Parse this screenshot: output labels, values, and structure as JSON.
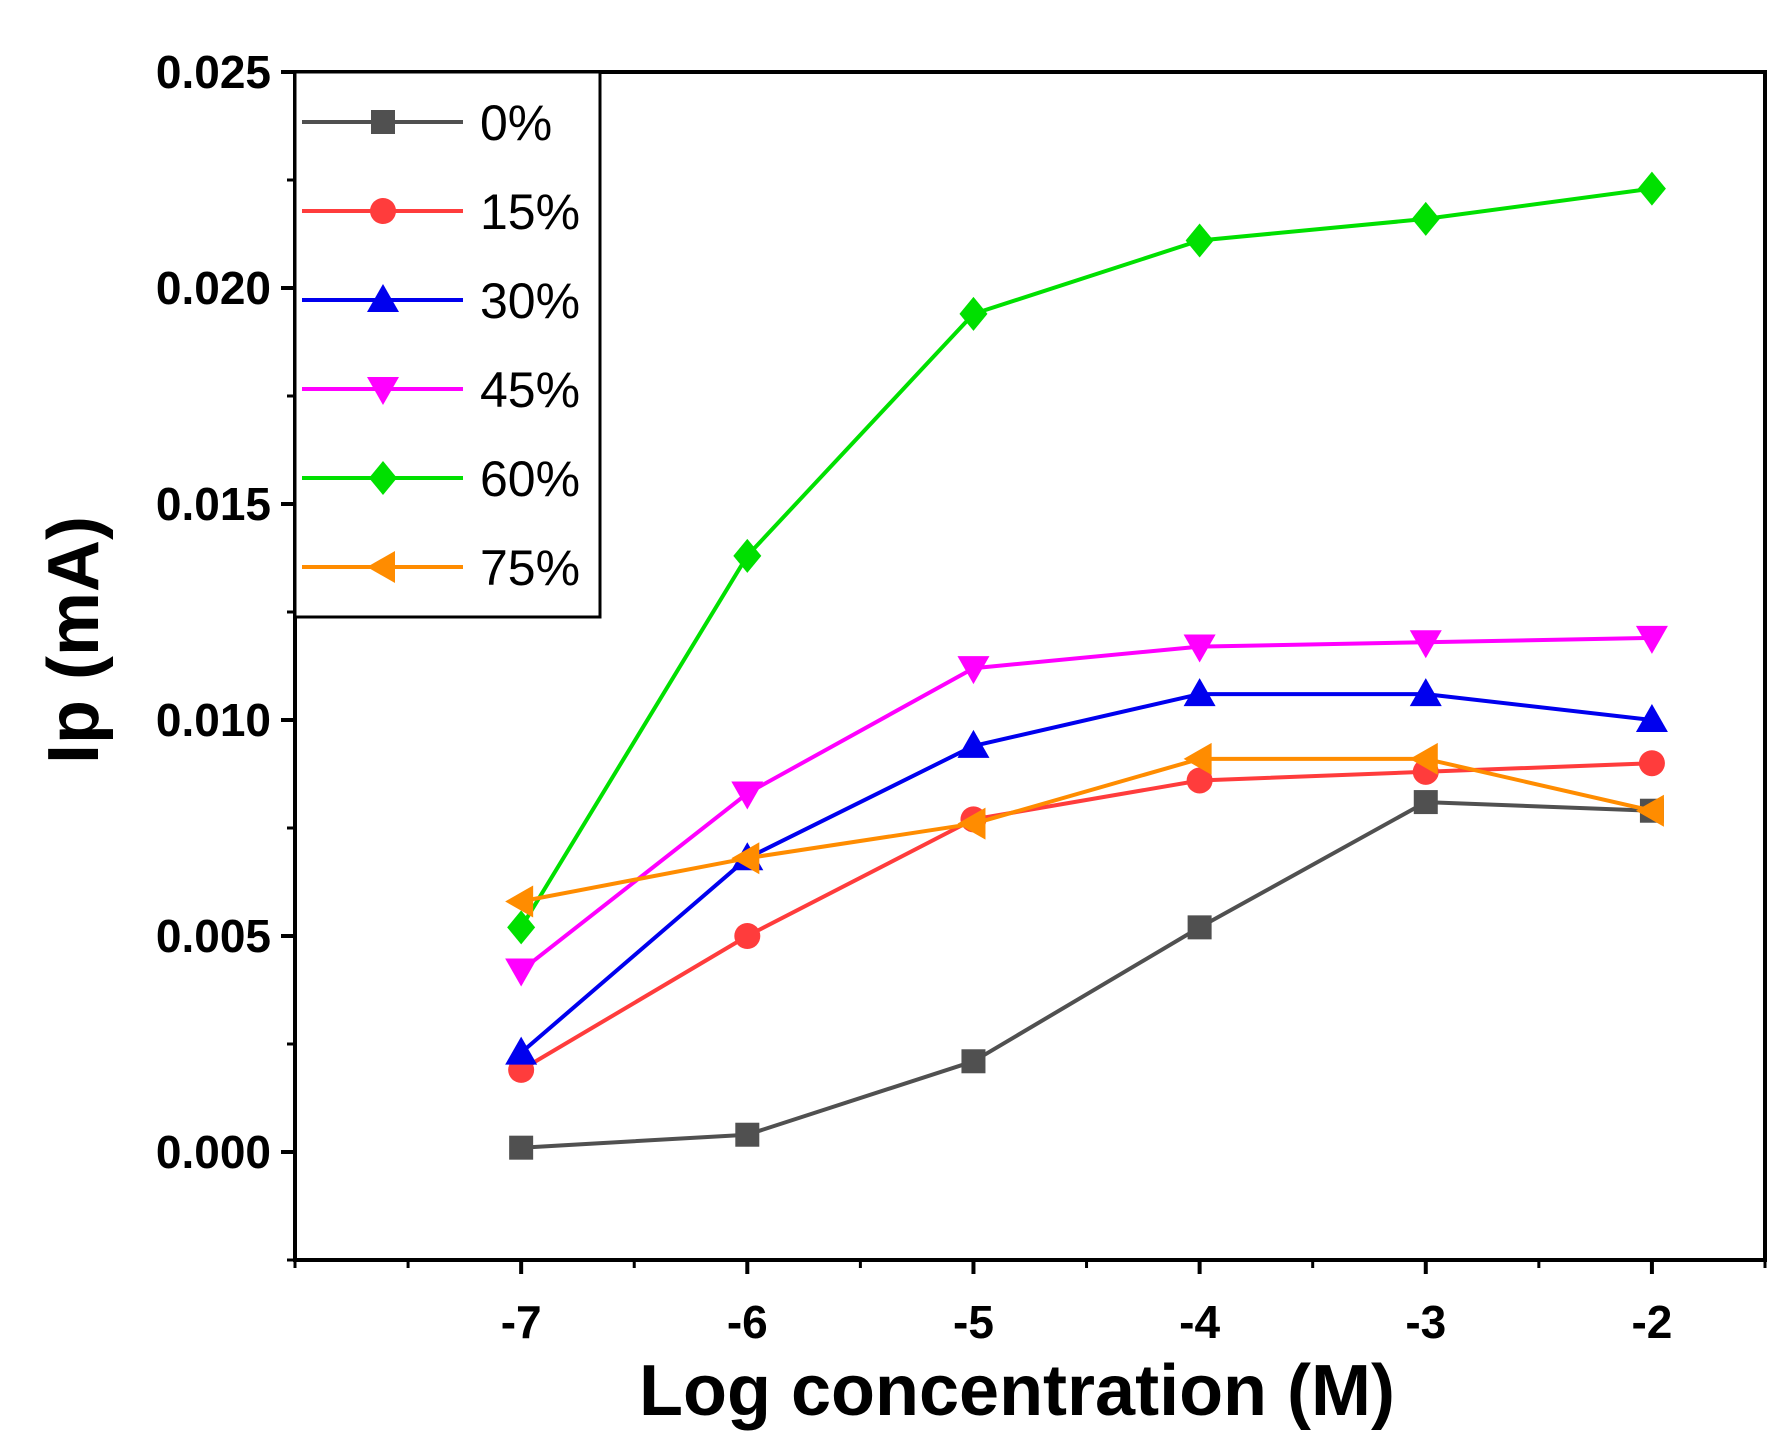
{
  "chart_data": {
    "type": "line",
    "title": "",
    "xlabel": "Log concentration (M)",
    "ylabel": "Ip (mA)",
    "xlim": [
      -8,
      -1.5
    ],
    "ylim": [
      -0.0025,
      0.025
    ],
    "xticks": [
      -7,
      -6,
      -5,
      -4,
      -3,
      -2
    ],
    "xtick_labels": [
      "-7",
      "-6",
      "-5",
      "-4",
      "-3",
      "-2"
    ],
    "yticks": [
      0.0,
      0.005,
      0.01,
      0.015,
      0.02,
      0.025
    ],
    "ytick_labels": [
      "0.000",
      "0.005",
      "0.010",
      "0.015",
      "0.020",
      "0.025"
    ],
    "legend_position": "top-left",
    "grid": false,
    "x": [
      -7,
      -6,
      -5,
      -4,
      -3,
      -2
    ],
    "series": [
      {
        "name": "0%",
        "color": "#505050",
        "marker": "square",
        "values": [
          0.0001,
          0.0004,
          0.0021,
          0.0052,
          0.0081,
          0.0079
        ]
      },
      {
        "name": "15%",
        "color": "#ff3c3c",
        "marker": "circle",
        "values": [
          0.0019,
          0.005,
          0.0077,
          0.0086,
          0.0088,
          0.009
        ]
      },
      {
        "name": "30%",
        "color": "#0000ee",
        "marker": "triangle-up",
        "values": [
          0.0023,
          0.0068,
          0.0094,
          0.0106,
          0.0106,
          0.01
        ]
      },
      {
        "name": "45%",
        "color": "#ff00ff",
        "marker": "triangle-down",
        "values": [
          0.0042,
          0.0083,
          0.0112,
          0.0117,
          0.0118,
          0.0119
        ]
      },
      {
        "name": "60%",
        "color": "#00e000",
        "marker": "diamond",
        "values": [
          0.0052,
          0.0138,
          0.0194,
          0.0211,
          0.0216,
          0.0223
        ]
      },
      {
        "name": "75%",
        "color": "#ff8c00",
        "marker": "triangle-left",
        "values": [
          0.0058,
          0.0068,
          0.0076,
          0.0091,
          0.0091,
          0.0079
        ]
      }
    ]
  }
}
